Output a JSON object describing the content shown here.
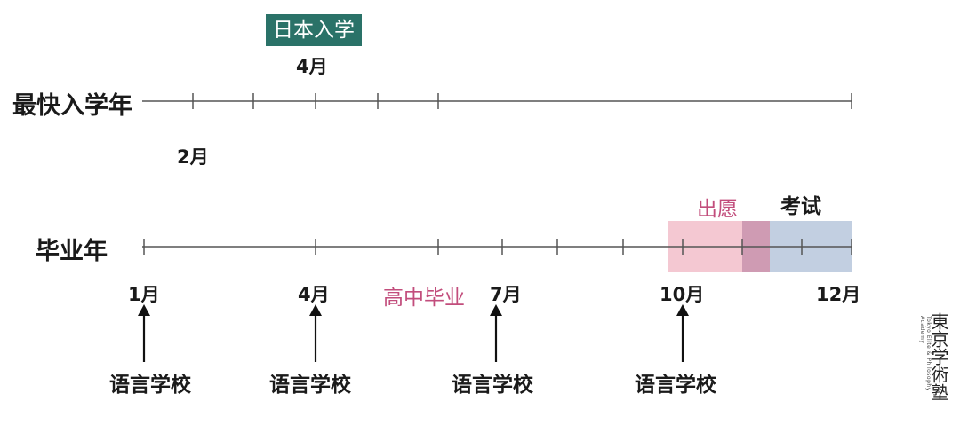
{
  "badge": {
    "label": "日本入学"
  },
  "rows": {
    "earliest_label": "最快入学年",
    "graduation_label": "毕业年"
  },
  "months": {
    "top_4": "4月",
    "top_2": "2月",
    "m1": "1月",
    "m4": "4月",
    "m7": "7月",
    "m10": "10月",
    "m12": "12月"
  },
  "events": {
    "highschool_grad": "高中毕业",
    "application": "出愿",
    "exam": "考试"
  },
  "arrows": {
    "labels": [
      "语言学校",
      "语言学校",
      "语言学校",
      "语言学校"
    ]
  },
  "brand": {
    "name": "東京学術塾",
    "english": "Tokyo Elite & Philosophy Academy"
  },
  "colors": {
    "badge_bg": "#2a7268",
    "application_band": "#f4c8d2",
    "exam_band": "#c2cfe1",
    "overlap_band": "#cf9bb3",
    "pink_text": "#c24d7c"
  }
}
